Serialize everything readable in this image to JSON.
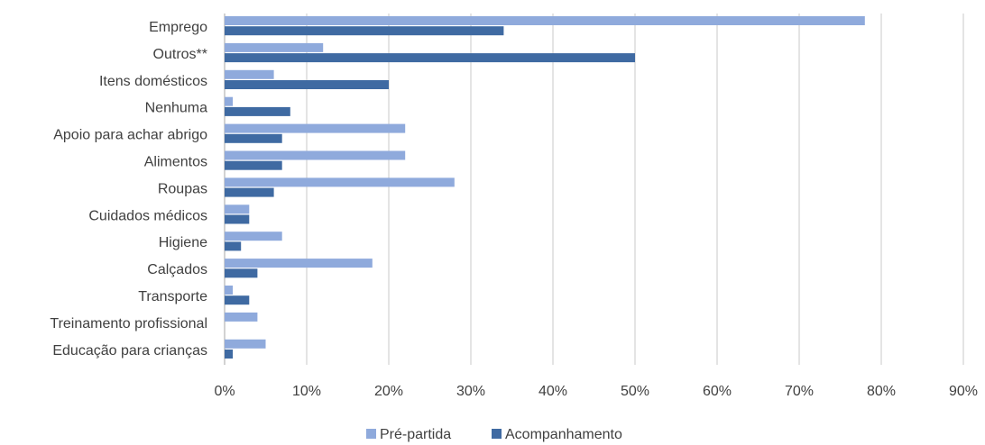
{
  "chart_data": {
    "type": "bar",
    "orientation": "horizontal",
    "categories": [
      "Emprego",
      "Outros**",
      "Itens domésticos",
      "Nenhuma",
      "Apoio para achar abrigo",
      "Alimentos",
      "Roupas",
      "Cuidados médicos",
      "Higiene",
      "Calçados",
      "Transporte",
      "Treinamento profissional",
      "Educação para crianças"
    ],
    "series": [
      {
        "name": "Pré-partida",
        "color": "#8faadc",
        "values": [
          78,
          12,
          6,
          1,
          22,
          22,
          28,
          3,
          7,
          18,
          1,
          4,
          5
        ]
      },
      {
        "name": "Acompanhamento",
        "color": "#3f6aa2",
        "values": [
          34,
          50,
          20,
          8,
          7,
          7,
          6,
          3,
          2,
          4,
          3,
          0,
          1
        ]
      }
    ],
    "xlim": [
      0,
      90
    ],
    "xticks": [
      "0%",
      "10%",
      "20%",
      "30%",
      "40%",
      "50%",
      "60%",
      "70%",
      "80%",
      "90%"
    ],
    "grid": true,
    "legend_position": "bottom"
  }
}
